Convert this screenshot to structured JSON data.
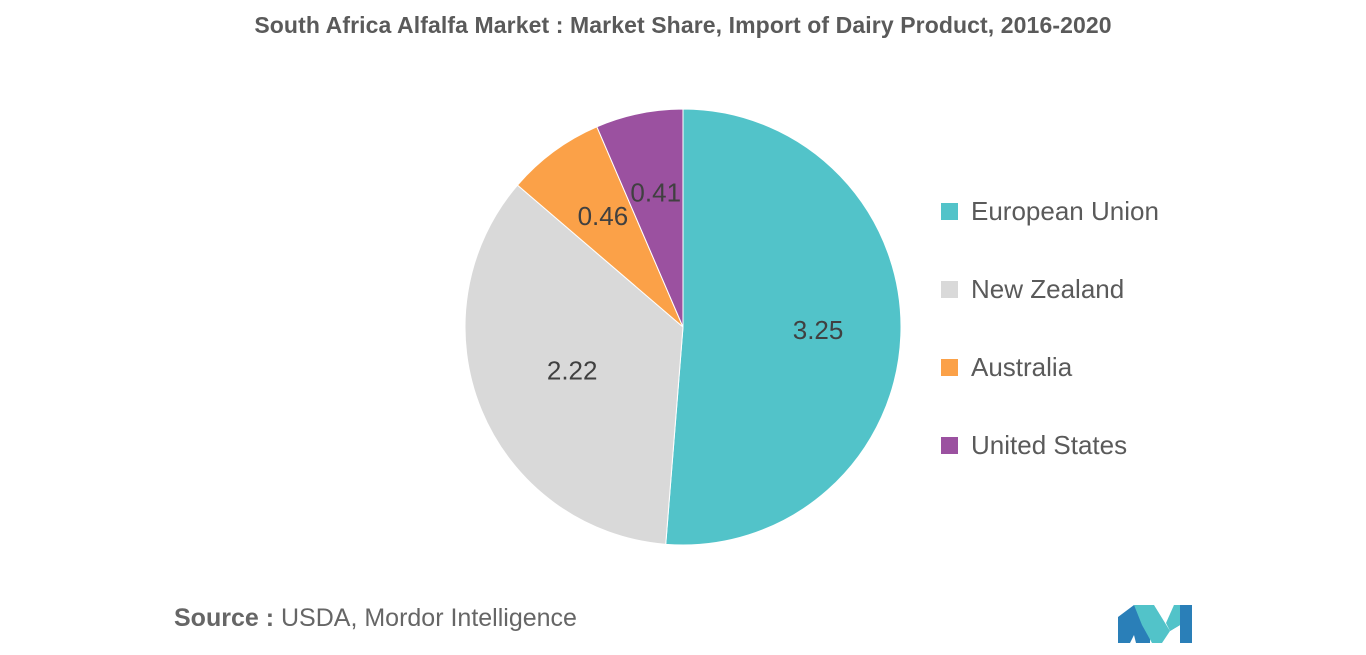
{
  "chart_data": {
    "type": "pie",
    "title": "South Africa Alfalfa Market : Market Share, Import of Dairy Product, 2016-2020",
    "slices": [
      {
        "name": "European Union",
        "value": 3.25,
        "label": "3.25",
        "color": "#52c3c9"
      },
      {
        "name": "New Zealand",
        "value": 2.22,
        "label": "2.22",
        "color": "#d9d9d9"
      },
      {
        "name": "Australia",
        "value": 0.46,
        "label": "0.46",
        "color": "#fba148"
      },
      {
        "name": "United States",
        "value": 0.41,
        "label": "0.41",
        "color": "#9b51a0"
      }
    ],
    "legend_position": "right"
  },
  "source": {
    "label": "Source :",
    "text": "USDA, Mordor Intelligence"
  },
  "logo": {
    "icon": "mordor-intelligence-logo-icon",
    "colors": [
      "#2a7fb8",
      "#52c3c9"
    ]
  }
}
